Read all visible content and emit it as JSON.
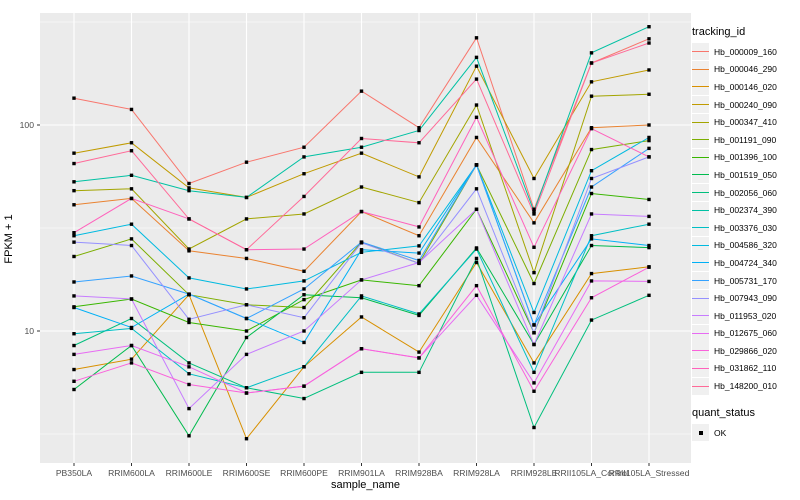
{
  "chart_data": {
    "type": "line",
    "title": "",
    "xlabel": "sample_name",
    "ylabel": "FPKM + 1",
    "yscale": "log10",
    "ytick_values": [
      100,
      10
    ],
    "ytick_labels": [
      "100",
      "10"
    ],
    "minor_ytick_values": [
      316.2,
      31.62,
      3.162
    ],
    "ylim": [
      2.3,
      350
    ],
    "grid": true,
    "legend_position": "right",
    "categories": [
      "PB350LA",
      "RRIM600LA",
      "RRIM600LE",
      "RRIM600SE",
      "RRIM600PE",
      "RRIM901LA",
      "RRIM928BA",
      "RRIM928LA",
      "RRIM928LE",
      "RRII105LA_Control",
      "RRII105LA_Stressed"
    ],
    "series": [
      {
        "name": "Hb_000009_160",
        "color": "#F8766D",
        "values": [
          135,
          119,
          52,
          66,
          78,
          146,
          97,
          265,
          39,
          200,
          262
        ]
      },
      {
        "name": "Hb_000046_290",
        "color": "#EA8331",
        "values": [
          41,
          44,
          24.5,
          22.5,
          19.5,
          38,
          29,
          87,
          33.5,
          97,
          100
        ]
      },
      {
        "name": "Hb_000146_020",
        "color": "#D89000",
        "values": [
          6.5,
          7.3,
          15,
          3.0,
          6.7,
          11.7,
          7.9,
          21.5,
          7.0,
          19,
          20.5
        ]
      },
      {
        "name": "Hb_000240_090",
        "color": "#C09B00",
        "values": [
          73,
          82,
          49.5,
          44.5,
          58,
          73,
          56,
          193,
          55,
          162,
          185
        ]
      },
      {
        "name": "Hb_000347_410",
        "color": "#A3A500",
        "values": [
          48,
          49,
          25,
          35,
          37,
          50,
          42,
          125,
          19.2,
          138,
          141
        ]
      },
      {
        "name": "Hb_001191_090",
        "color": "#7CAE00",
        "values": [
          23,
          28,
          15,
          13.4,
          13,
          27,
          21.3,
          64,
          17,
          76,
          84
        ]
      },
      {
        "name": "Hb_001396_100",
        "color": "#39B600",
        "values": [
          13.1,
          14.3,
          11,
          10,
          14.2,
          17.7,
          16.6,
          39,
          9.8,
          46.5,
          43.5
        ]
      },
      {
        "name": "Hb_001519_050",
        "color": "#00BB4E",
        "values": [
          5.2,
          8.5,
          3.1,
          9.3,
          15,
          14.5,
          11.9,
          25.3,
          8.6,
          26,
          25.4
        ]
      },
      {
        "name": "Hb_002056_060",
        "color": "#00BF7D",
        "values": [
          8.5,
          11.5,
          7.0,
          5.3,
          4.7,
          6.3,
          6.3,
          22.5,
          3.4,
          11.3,
          14.9
        ]
      },
      {
        "name": "Hb_002374_390",
        "color": "#00C1A3",
        "values": [
          53,
          57,
          48,
          44.5,
          70,
          78,
          94,
          213,
          38,
          224,
          300
        ]
      },
      {
        "name": "Hb_003376_030",
        "color": "#00BFC4",
        "values": [
          9.7,
          10.3,
          6.2,
          5.3,
          6.7,
          14.8,
          12.1,
          25,
          6.3,
          29,
          33
        ]
      },
      {
        "name": "Hb_004586_320",
        "color": "#00BAE0",
        "values": [
          29,
          33,
          18.1,
          16,
          17.5,
          24.1,
          25.9,
          64,
          12.3,
          60,
          87
        ]
      },
      {
        "name": "Hb_004724_340",
        "color": "#00B0F6",
        "values": [
          13,
          10.4,
          15.1,
          11.5,
          8.8,
          24.8,
          23.9,
          64,
          10.7,
          28,
          26
        ]
      },
      {
        "name": "Hb_005731_170",
        "color": "#35A2FF",
        "values": [
          17.3,
          18.5,
          15.1,
          11.5,
          16,
          27,
          22,
          64,
          10.7,
          50,
          77
        ]
      },
      {
        "name": "Hb_007943_090",
        "color": "#9590FF",
        "values": [
          27,
          26,
          11.4,
          13.4,
          11.6,
          26.8,
          21.3,
          49,
          9.8,
          55,
          70
        ]
      },
      {
        "name": "Hb_011953_020",
        "color": "#C77CFF",
        "values": [
          14.8,
          14.3,
          4.2,
          7.7,
          10,
          17.7,
          21.5,
          39,
          8.6,
          37,
          36
        ]
      },
      {
        "name": "Hb_012675_060",
        "color": "#E76BF3",
        "values": [
          7.7,
          8.5,
          6.7,
          5.0,
          5.4,
          8.2,
          7.4,
          14.9,
          5.6,
          17.5,
          17.4
        ]
      },
      {
        "name": "Hb_029866_020",
        "color": "#FA62DB",
        "values": [
          5.7,
          7.0,
          5.5,
          5.0,
          5.4,
          8.2,
          7.4,
          16.6,
          5.1,
          14.5,
          20.4
        ]
      },
      {
        "name": "Hb_031862_110",
        "color": "#FF62BC",
        "values": [
          30,
          44,
          35,
          24.8,
          25,
          38,
          32,
          109,
          25.5,
          96,
          70
        ]
      },
      {
        "name": "Hb_148200_010",
        "color": "#FF6A98",
        "values": [
          65,
          75,
          35,
          24.8,
          45,
          86,
          82,
          167,
          37,
          200,
          250
        ]
      }
    ],
    "marker": {
      "shape": "square",
      "color": "#000000",
      "size": 3.4
    },
    "legend": {
      "tracking_title": "tracking_id",
      "quant_title": "quant_status",
      "quant_items": [
        {
          "label": "OK",
          "marker": "black-square"
        }
      ]
    },
    "colors": {
      "panel_bg": "#EBEBEB",
      "grid": "#FFFFFF",
      "tick_text": "#4D4D4D",
      "axis_tick": "#333333",
      "legend_key_bg": "#F0F0F0"
    }
  }
}
